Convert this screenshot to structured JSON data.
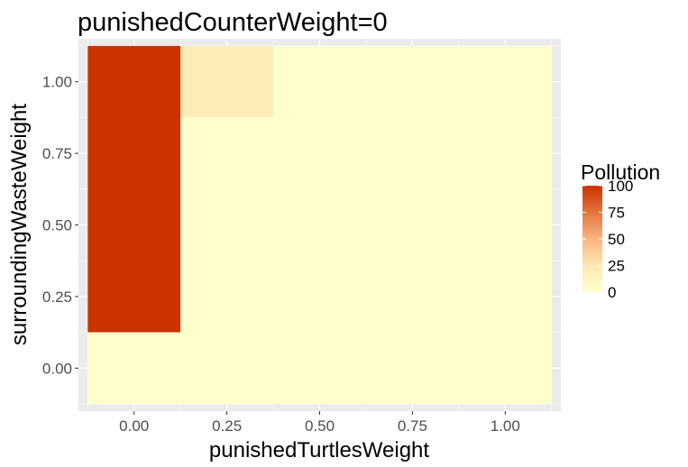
{
  "chart_data": {
    "type": "heatmap",
    "title": "punishedCounterWeight=0",
    "xlabel": "punishedTurtlesWeight",
    "ylabel": "surroundingWasteWeight",
    "x_ticks": [
      "0.00",
      "0.25",
      "0.50",
      "0.75",
      "1.00"
    ],
    "y_ticks": [
      "0.00",
      "0.25",
      "0.50",
      "0.75",
      "1.00"
    ],
    "xlim": [
      -0.15,
      1.15
    ],
    "ylim": [
      -0.15,
      1.15
    ],
    "grid": true,
    "legend": {
      "title": "Pollution",
      "placement": "right",
      "breaks": [
        "0",
        "25",
        "50",
        "75",
        "100"
      ],
      "range": [
        0,
        100
      ],
      "low_color": "#FFFFCC",
      "high_color": "#CC3300"
    },
    "tiles": [
      {
        "x0": -0.125,
        "x1": 0.125,
        "y0": 0.125,
        "y1": 1.125,
        "value": 100
      },
      {
        "x0": 0.125,
        "x1": 0.375,
        "y0": 0.875,
        "y1": 1.125,
        "value": 20
      },
      {
        "x0": 0.125,
        "x1": 0.375,
        "y0": 0.125,
        "y1": 0.875,
        "value": 0
      },
      {
        "x0": 0.375,
        "x1": 1.125,
        "y0": 0.125,
        "y1": 1.125,
        "value": 0
      },
      {
        "x0": -0.125,
        "x1": 1.125,
        "y0": -0.125,
        "y1": 0.125,
        "value": 0
      }
    ]
  }
}
